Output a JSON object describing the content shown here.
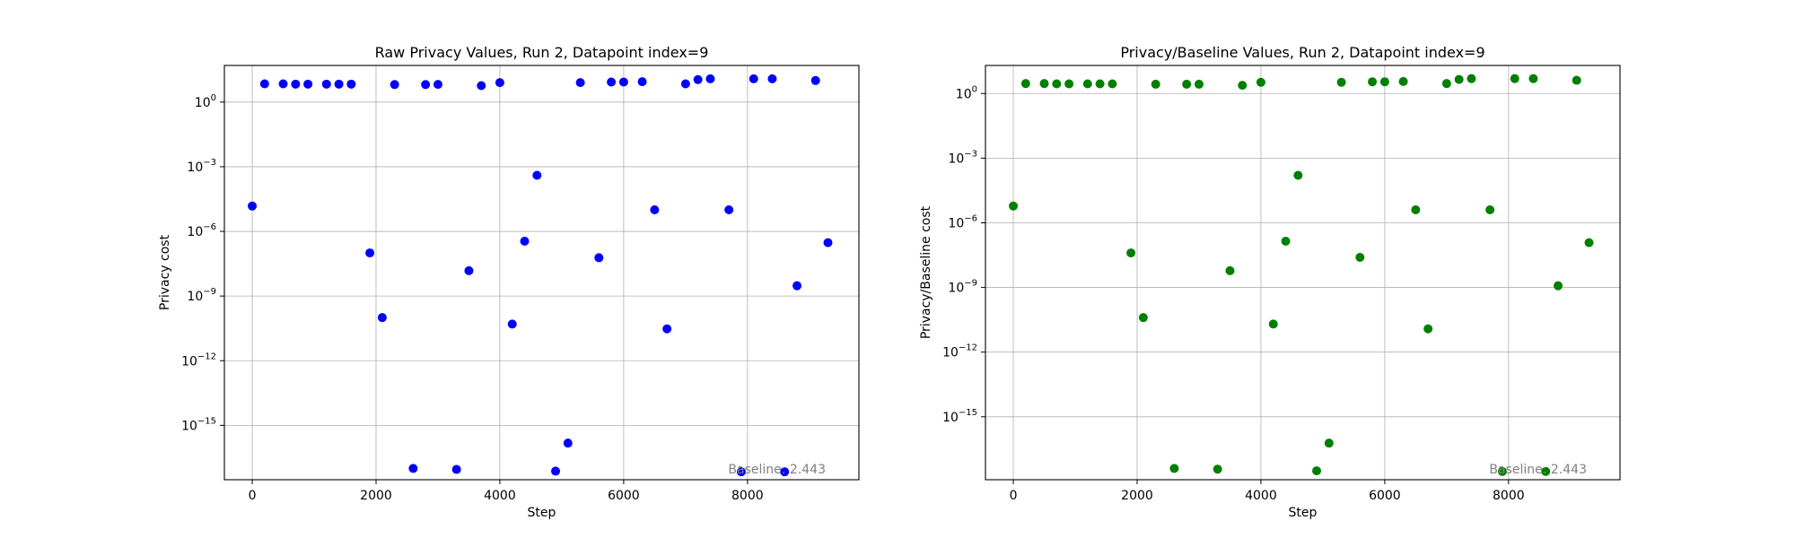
{
  "chart_data": [
    {
      "type": "scatter",
      "title": "Raw Privacy Values, Run 2, Datapoint index=9",
      "xlabel": "Step",
      "ylabel": "Privacy cost",
      "yscale": "log",
      "xlim": [
        -450,
        9800
      ],
      "ylim": [
        3e-18,
        50.0
      ],
      "xticks": [
        0,
        2000,
        4000,
        6000,
        8000
      ],
      "xtick_labels": [
        "0",
        "2000",
        "4000",
        "6000",
        "8000"
      ],
      "yticks": [
        1e-15,
        1e-12,
        1e-09,
        1e-06,
        0.001,
        1
      ],
      "ytick_labels": [
        "10^-15",
        "10^-12",
        "10^-9",
        "10^-6",
        "10^-3",
        "10^0"
      ],
      "grid": true,
      "color": "#0000ff",
      "annotation": "Baseline: 2.443",
      "annotation_position": "bottom-right",
      "x": [
        0,
        200,
        500,
        700,
        900,
        1200,
        1400,
        1600,
        1900,
        2100,
        2300,
        2600,
        2800,
        3000,
        3300,
        3500,
        3700,
        4000,
        4200,
        4400,
        4600,
        4900,
        5100,
        5300,
        5600,
        5800,
        6000,
        6300,
        6500,
        6700,
        7000,
        7200,
        7400,
        7700,
        7900,
        8100,
        8400,
        8600,
        8800,
        9100,
        9300
      ],
      "y": [
        1.5e-05,
        7.0,
        7.0,
        6.8,
        6.8,
        6.8,
        6.8,
        6.8,
        1e-07,
        1e-10,
        6.5,
        1e-17,
        6.5,
        6.6,
        9e-18,
        1.5e-08,
        5.8,
        8.0,
        5e-11,
        3.5e-07,
        0.0004,
        7.5e-18,
        1.5e-16,
        8.0,
        6e-08,
        8.5,
        8.5,
        8.8,
        1e-05,
        3e-11,
        7.0,
        11.0,
        12.0,
        1e-05,
        7e-18,
        12.0,
        12.0,
        7e-18,
        3e-09,
        10.0,
        3e-07
      ]
    },
    {
      "type": "scatter",
      "title": "Privacy/Baseline Values, Run 2, Datapoint index=9",
      "xlabel": "Step",
      "ylabel": "Privacy/Baseline cost",
      "yscale": "log",
      "xlim": [
        -450,
        9800
      ],
      "ylim": [
        1.2e-18,
        20.0
      ],
      "xticks": [
        0,
        2000,
        4000,
        6000,
        8000
      ],
      "xtick_labels": [
        "0",
        "2000",
        "4000",
        "6000",
        "8000"
      ],
      "yticks": [
        1e-15,
        1e-12,
        1e-09,
        1e-06,
        0.001,
        1
      ],
      "ytick_labels": [
        "10^-15",
        "10^-12",
        "10^-9",
        "10^-6",
        "10^-3",
        "10^0"
      ],
      "grid": true,
      "color": "#008000",
      "annotation": "Baseline: 2.443",
      "annotation_position": "bottom-right",
      "x": [
        0,
        200,
        500,
        700,
        900,
        1200,
        1400,
        1600,
        1900,
        2100,
        2300,
        2600,
        2800,
        3000,
        3300,
        3500,
        3700,
        4000,
        4200,
        4400,
        4600,
        4900,
        5100,
        5300,
        5600,
        5800,
        6000,
        6300,
        6500,
        6700,
        7000,
        7200,
        7400,
        7700,
        7900,
        8100,
        8400,
        8600,
        8800,
        9100,
        9300
      ],
      "y": [
        6e-06,
        2.9,
        2.9,
        2.8,
        2.8,
        2.8,
        2.8,
        2.8,
        4e-08,
        4e-11,
        2.7,
        4e-18,
        2.7,
        2.7,
        3.7e-18,
        6e-09,
        2.4,
        3.3,
        2e-11,
        1.4e-07,
        0.00016,
        3.1e-18,
        6e-17,
        3.3,
        2.5e-08,
        3.5,
        3.5,
        3.6,
        4e-06,
        1.2e-11,
        2.9,
        4.5,
        4.9,
        4e-06,
        2.9e-18,
        4.9,
        4.9,
        2.9e-18,
        1.2e-09,
        4.1,
        1.2e-07
      ]
    }
  ]
}
